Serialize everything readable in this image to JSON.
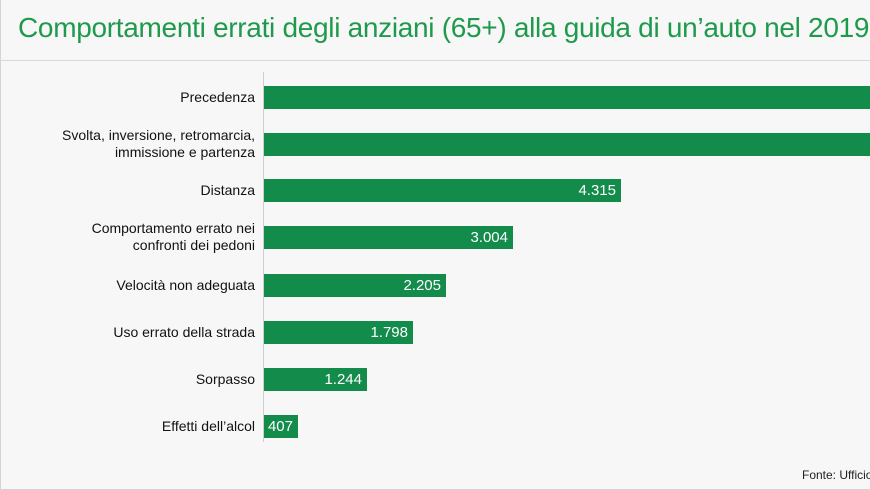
{
  "chart_data": {
    "type": "bar",
    "orientation": "horizontal",
    "title": "Comportamenti errati degli anziani (65+) alla guida di un’auto nel 2019",
    "categories": [
      "Precedenza",
      "Svolta, inversione, retromarcia, immissione e partenza",
      "Distanza",
      "Comportamento errato nei confronti dei pedoni",
      "Velocità non adeguata",
      "Uso errato della strada",
      "Sorpasso",
      "Effetti dell’alcol"
    ],
    "category_lines": [
      [
        "Precedenza"
      ],
      [
        "Svolta, inversione, retromarcia,",
        "immissione e partenza"
      ],
      [
        "Distanza"
      ],
      [
        "Comportamento errato nei",
        "confronti dei pedoni"
      ],
      [
        "Velocità non adeguata"
      ],
      [
        "Uso errato della strada"
      ],
      [
        "Sorpasso"
      ],
      [
        "Effetti dell’alcol"
      ]
    ],
    "values": [
      null,
      null,
      4315,
      3004,
      2205,
      1798,
      1244,
      407
    ],
    "value_labels": [
      "",
      "",
      "4.315",
      "3.004",
      "2.205",
      "1.798",
      "1.244",
      "407"
    ],
    "note": "First two bars extend beyond the visible area; their values are not shown.",
    "xlabel": "",
    "ylabel": "",
    "legend": "none",
    "grid": false,
    "source": "Fonte: Ufficio s"
  },
  "colors": {
    "title": "#1f9a4c",
    "bar": "#138b4b",
    "value_text": "#ffffff"
  }
}
